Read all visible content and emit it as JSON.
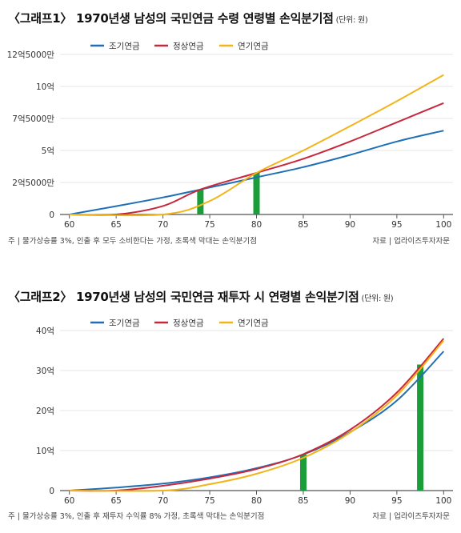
{
  "chart_data": [
    {
      "type": "line",
      "title": "〈그래프1〉 1970년생 남성의 국민연금 수령 연령별 손익분기점",
      "unit_note": "(단위: 원)",
      "x_ticks": [
        60,
        65,
        70,
        75,
        80,
        85,
        90,
        95,
        100
      ],
      "y_ticks": [
        0,
        250000000,
        500000000,
        750000000,
        1000000000,
        1250000000
      ],
      "y_tick_labels": [
        "0",
        "2억5000만",
        "5억",
        "7억5000만",
        "10억",
        "12억5000만"
      ],
      "xlim": [
        59,
        101
      ],
      "ylim": [
        0,
        1250000000
      ],
      "legend": [
        "조기연금",
        "정상연금",
        "연기연금"
      ],
      "legend_position": "top",
      "series": [
        {
          "name": "조기연금",
          "color": "#1f6fb7",
          "x": [
            60,
            65,
            70,
            74,
            80,
            85,
            90,
            95,
            100
          ],
          "y": [
            0,
            65000000,
            133000000,
            195000000,
            290000000,
            370000000,
            465000000,
            570000000,
            655000000
          ]
        },
        {
          "name": "정상연금",
          "color": "#c8283c",
          "x": [
            60,
            65,
            70,
            74,
            80,
            85,
            90,
            95,
            100
          ],
          "y": [
            0,
            0,
            66000000,
            195000000,
            325000000,
            435000000,
            570000000,
            720000000,
            870000000
          ]
        },
        {
          "name": "연기연금",
          "color": "#f2b418",
          "x": [
            60,
            70,
            75,
            80,
            85,
            90,
            95,
            100
          ],
          "y": [
            0,
            0,
            105000000,
            325000000,
            500000000,
            690000000,
            885000000,
            1090000000
          ]
        }
      ],
      "breakeven_bars": [
        {
          "x": 74,
          "y": 195000000
        },
        {
          "x": 80,
          "y": 325000000
        }
      ],
      "footnote": "주 | 물가상승률 3%, 인출 후 모두 소비한다는 가정, 초록색 막대는 손익분기점",
      "source": "자료 | 업라이즈투자자문"
    },
    {
      "type": "line",
      "title": "〈그래프2〉 1970년생 남성의 국민연금 재투자 시 연령별 손익분기점",
      "unit_note": "(단위: 원)",
      "x_ticks": [
        60,
        65,
        70,
        75,
        80,
        85,
        90,
        95,
        100
      ],
      "y_ticks": [
        0,
        1000000000,
        2000000000,
        3000000000,
        4000000000
      ],
      "y_tick_labels": [
        "0",
        "10억",
        "20억",
        "30억",
        "40억"
      ],
      "xlim": [
        59,
        101
      ],
      "ylim": [
        0,
        4000000000
      ],
      "legend": [
        "조기연금",
        "정상연금",
        "연기연금"
      ],
      "legend_position": "top",
      "series": [
        {
          "name": "조기연금",
          "color": "#1f6fb7",
          "x": [
            60,
            65,
            70,
            75,
            80,
            85,
            90,
            95,
            100
          ],
          "y": [
            0,
            75000000,
            175000000,
            330000000,
            560000000,
            900000000,
            1460000000,
            2250000000,
            3480000000
          ]
        },
        {
          "name": "정상연금",
          "color": "#c8283c",
          "x": [
            60,
            65,
            70,
            75,
            80,
            85,
            90,
            95,
            100
          ],
          "y": [
            0,
            0,
            120000000,
            300000000,
            540000000,
            910000000,
            1520000000,
            2450000000,
            3800000000
          ]
        },
        {
          "name": "연기연금",
          "color": "#f2b418",
          "x": [
            60,
            70,
            75,
            80,
            85,
            90,
            95,
            100
          ],
          "y": [
            0,
            0,
            160000000,
            420000000,
            820000000,
            1450000000,
            2380000000,
            3750000000
          ]
        }
      ],
      "breakeven_bars": [
        {
          "x": 85,
          "y": 900000000
        },
        {
          "x": 97.5,
          "y": 3150000000
        }
      ],
      "footnote": "주 | 물가상승률 3%, 인출 후 재투자 수익률 8% 가정, 초록색 막대는 손익분기점",
      "source": "자료 | 업라이즈투자자문"
    }
  ],
  "colors": {
    "breakeven": "#1a9e3a",
    "axis": "#555555",
    "grid": "#e4e4e4"
  }
}
